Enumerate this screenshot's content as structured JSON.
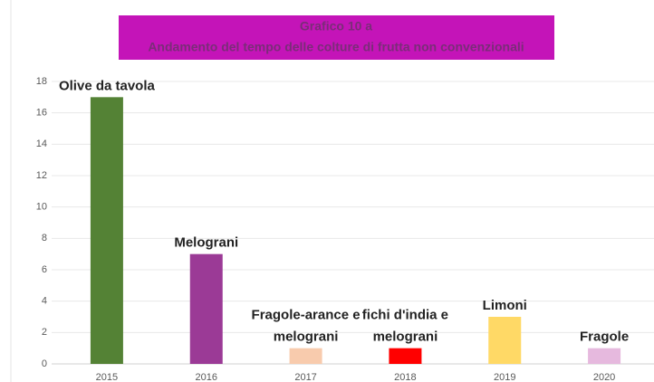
{
  "chart_data": {
    "type": "bar",
    "title": [
      "Grafico 10 a",
      "Andamento del tempo delle colture di frutta non convenzionali"
    ],
    "categories": [
      "2015",
      "2016",
      "2017",
      "2018",
      "2019",
      "2020"
    ],
    "values": [
      17,
      7,
      1,
      1,
      3,
      1
    ],
    "colors": [
      "#548235",
      "#9b3a96",
      "#f8cbad",
      "#ff0000",
      "#ffd966",
      "#e6b9de"
    ],
    "bar_labels": [
      [
        "Olive da tavola"
      ],
      [
        "Melograni"
      ],
      [
        "Fragole-arance e",
        "melograni"
      ],
      [
        "fichi d'india e",
        "melograni"
      ],
      [
        "Limoni"
      ],
      [
        "Fragole"
      ]
    ],
    "ylim": [
      0,
      18
    ],
    "yticks": [
      0,
      2,
      4,
      6,
      8,
      10,
      12,
      14,
      16,
      18
    ],
    "grid": true
  }
}
